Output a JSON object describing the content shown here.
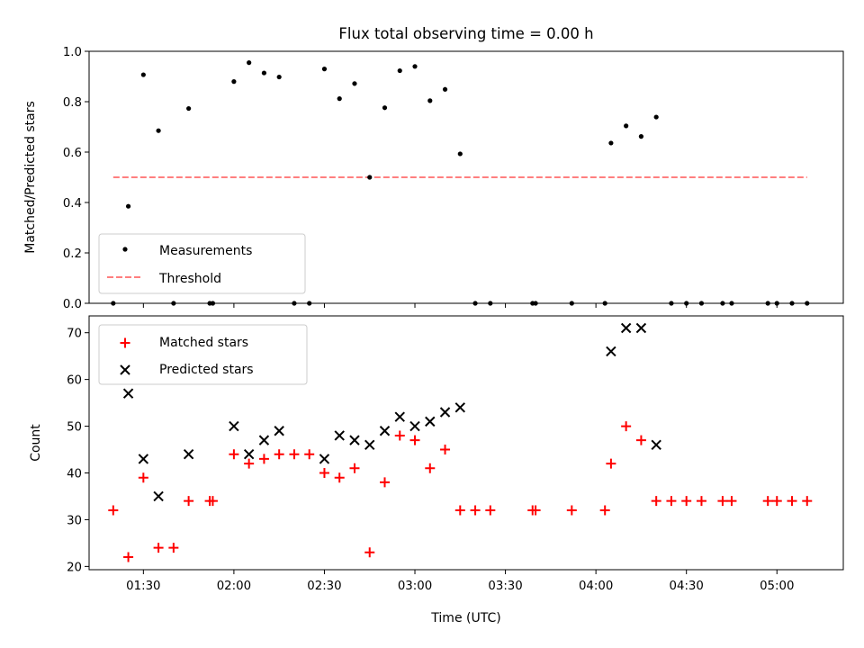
{
  "figure": {
    "title": "Flux total observing time = 0.00 h"
  },
  "chart_data": [
    {
      "type": "scatter",
      "panel": "top",
      "ylabel": "Matched/Predicted stars",
      "xlabel": "",
      "ylim": [
        0.0,
        1.0
      ],
      "yticks": [
        "0.0",
        "0.2",
        "0.4",
        "0.6",
        "0.8",
        "1.0"
      ],
      "legend_position": "lower-left",
      "legend": [
        "Measurements",
        "Threshold"
      ],
      "colors": {
        "measurements": "#000000",
        "threshold": "#ff7f7f"
      },
      "series": [
        {
          "name": "Measurements",
          "marker": "dot",
          "points": [
            [
              "01:20",
              0.0
            ],
            [
              "01:25",
              0.385
            ],
            [
              "01:30",
              0.907
            ],
            [
              "01:35",
              0.685
            ],
            [
              "01:40",
              0.0
            ],
            [
              "01:45",
              0.773
            ],
            [
              "01:52",
              0.0
            ],
            [
              "01:53",
              0.0
            ],
            [
              "02:00",
              0.88
            ],
            [
              "02:05",
              0.955
            ],
            [
              "02:10",
              0.914
            ],
            [
              "02:15",
              0.898
            ],
            [
              "02:20",
              0.0
            ],
            [
              "02:25",
              0.0
            ],
            [
              "02:30",
              0.93
            ],
            [
              "02:35",
              0.812
            ],
            [
              "02:40",
              0.872
            ],
            [
              "02:45",
              0.5
            ],
            [
              "02:50",
              0.776
            ],
            [
              "02:55",
              0.923
            ],
            [
              "03:00",
              0.94
            ],
            [
              "03:05",
              0.804
            ],
            [
              "03:10",
              0.849
            ],
            [
              "03:15",
              0.593
            ],
            [
              "03:20",
              0.0
            ],
            [
              "03:25",
              0.0
            ],
            [
              "03:39",
              0.0
            ],
            [
              "03:40",
              0.0
            ],
            [
              "03:52",
              0.0
            ],
            [
              "04:03",
              0.0
            ],
            [
              "04:05",
              0.636
            ],
            [
              "04:10",
              0.704
            ],
            [
              "04:15",
              0.662
            ],
            [
              "04:20",
              0.739
            ],
            [
              "04:25",
              0.0
            ],
            [
              "04:30",
              0.0
            ],
            [
              "04:35",
              0.0
            ],
            [
              "04:42",
              0.0
            ],
            [
              "04:45",
              0.0
            ],
            [
              "04:57",
              0.0
            ],
            [
              "05:00",
              0.0
            ],
            [
              "05:05",
              0.0
            ],
            [
              "05:10",
              0.0
            ]
          ]
        },
        {
          "name": "Threshold",
          "marker": "dashed-line",
          "points": [
            [
              "01:20",
              0.5
            ],
            [
              "05:10",
              0.5
            ]
          ]
        }
      ]
    },
    {
      "type": "scatter",
      "panel": "bottom",
      "ylabel": "Count",
      "xlabel": "Time (UTC)",
      "ylim": [
        19.3,
        73.6
      ],
      "yticks": [
        "20",
        "30",
        "40",
        "50",
        "60",
        "70"
      ],
      "xlim": [
        "01:12",
        "05:22"
      ],
      "xticks": [
        "01:30",
        "02:00",
        "02:30",
        "03:00",
        "03:30",
        "04:00",
        "04:30",
        "05:00"
      ],
      "legend_position": "upper-left",
      "legend": [
        "Matched stars",
        "Predicted stars"
      ],
      "colors": {
        "matched": "#ff0000",
        "predicted": "#000000"
      },
      "series": [
        {
          "name": "Matched stars",
          "marker": "plus",
          "points": [
            [
              "01:20",
              32
            ],
            [
              "01:25",
              22
            ],
            [
              "01:30",
              39
            ],
            [
              "01:35",
              24
            ],
            [
              "01:40",
              24
            ],
            [
              "01:45",
              34
            ],
            [
              "01:52",
              34
            ],
            [
              "01:53",
              34
            ],
            [
              "02:00",
              44
            ],
            [
              "02:05",
              42
            ],
            [
              "02:10",
              43
            ],
            [
              "02:15",
              44
            ],
            [
              "02:20",
              44
            ],
            [
              "02:25",
              44
            ],
            [
              "02:30",
              40
            ],
            [
              "02:35",
              39
            ],
            [
              "02:40",
              41
            ],
            [
              "02:45",
              23
            ],
            [
              "02:50",
              38
            ],
            [
              "02:55",
              48
            ],
            [
              "03:00",
              47
            ],
            [
              "03:05",
              41
            ],
            [
              "03:10",
              45
            ],
            [
              "03:15",
              32
            ],
            [
              "03:20",
              32
            ],
            [
              "03:25",
              32
            ],
            [
              "03:39",
              32
            ],
            [
              "03:40",
              32
            ],
            [
              "03:52",
              32
            ],
            [
              "04:03",
              32
            ],
            [
              "04:05",
              42
            ],
            [
              "04:10",
              50
            ],
            [
              "04:15",
              47
            ],
            [
              "04:20",
              34
            ],
            [
              "04:25",
              34
            ],
            [
              "04:30",
              34
            ],
            [
              "04:35",
              34
            ],
            [
              "04:42",
              34
            ],
            [
              "04:45",
              34
            ],
            [
              "04:57",
              34
            ],
            [
              "05:00",
              34
            ],
            [
              "05:05",
              34
            ],
            [
              "05:10",
              34
            ]
          ]
        },
        {
          "name": "Predicted stars",
          "marker": "x",
          "points": [
            [
              "01:25",
              57
            ],
            [
              "01:30",
              43
            ],
            [
              "01:35",
              35
            ],
            [
              "01:45",
              44
            ],
            [
              "02:00",
              50
            ],
            [
              "02:05",
              44
            ],
            [
              "02:10",
              47
            ],
            [
              "02:15",
              49
            ],
            [
              "02:30",
              43
            ],
            [
              "02:35",
              48
            ],
            [
              "02:40",
              47
            ],
            [
              "02:45",
              46
            ],
            [
              "02:50",
              49
            ],
            [
              "02:55",
              52
            ],
            [
              "03:00",
              50
            ],
            [
              "03:05",
              51
            ],
            [
              "03:10",
              53
            ],
            [
              "03:15",
              54
            ],
            [
              "04:05",
              66
            ],
            [
              "04:10",
              71
            ],
            [
              "04:15",
              71
            ],
            [
              "04:20",
              46
            ]
          ]
        }
      ]
    }
  ]
}
